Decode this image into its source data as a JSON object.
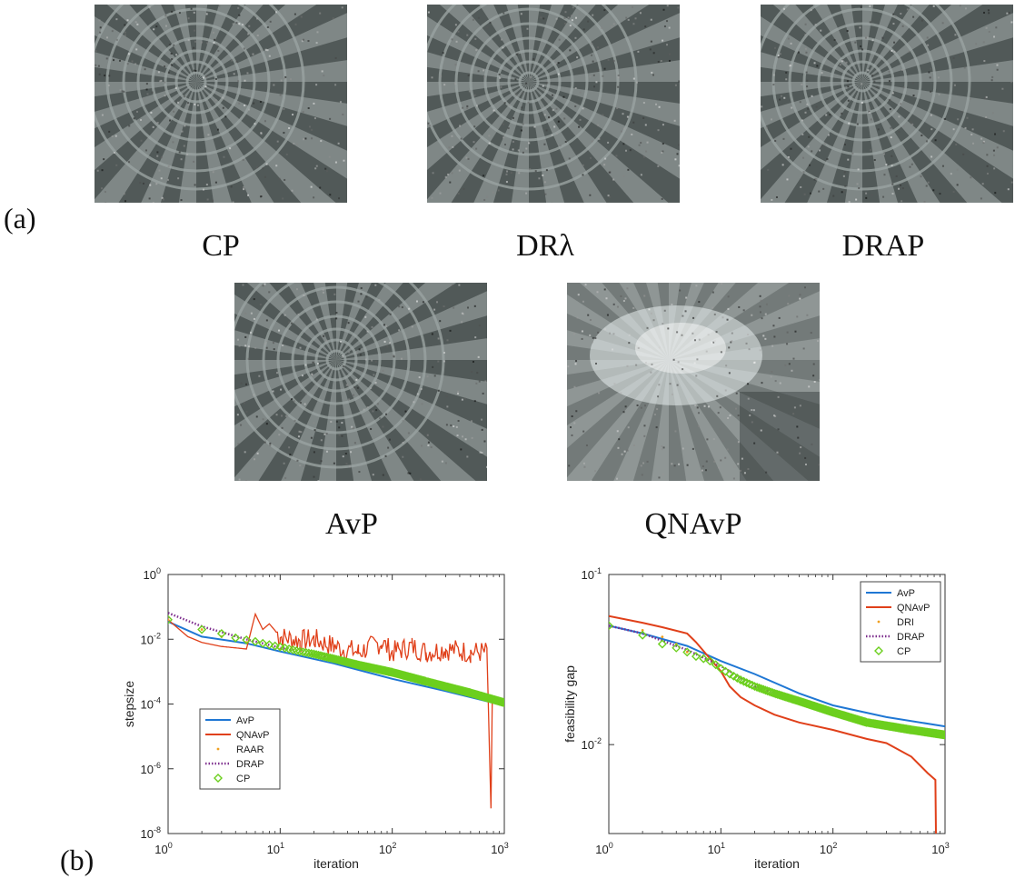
{
  "panel_labels": {
    "a": "(a)",
    "b": "(b)"
  },
  "images": [
    {
      "caption": "CP",
      "style": "grid"
    },
    {
      "caption": "DRλ",
      "style": "grid"
    },
    {
      "caption": "DRAP",
      "style": "grid"
    },
    {
      "caption": "AvP",
      "style": "grid"
    },
    {
      "caption": "QNAvP",
      "style": "blurred"
    }
  ],
  "colors": {
    "AvP": "#1f77d4",
    "QNAvP": "#e0401a",
    "RAAR": "#f0a020",
    "DRI": "#f0a020",
    "DRAP": "#7e2f8e",
    "CP": "#6ccf1e"
  },
  "chart_data": [
    {
      "type": "line",
      "xscale": "log",
      "yscale": "log",
      "xlim": [
        1,
        1000
      ],
      "ylim": [
        1e-08,
        1
      ],
      "xlabel": "iteration",
      "ylabel": "stepsize",
      "xticks": [
        1,
        10,
        100,
        1000
      ],
      "yticks": [
        1e-08,
        1e-06,
        0.0001,
        0.01,
        1
      ],
      "x_tick_labels": [
        {
          "base": "10",
          "exp": "0"
        },
        {
          "base": "10",
          "exp": "1"
        },
        {
          "base": "10",
          "exp": "2"
        },
        {
          "base": "10",
          "exp": "3"
        }
      ],
      "y_tick_labels": [
        {
          "base": "10",
          "exp": "-8"
        },
        {
          "base": "10",
          "exp": "-6"
        },
        {
          "base": "10",
          "exp": "-4"
        },
        {
          "base": "10",
          "exp": "-2"
        },
        {
          "base": "10",
          "exp": "0"
        }
      ],
      "legend_position": "bottom-left",
      "legend": [
        "AvP",
        "QNAvP",
        "RAAR",
        "DRAP",
        "CP"
      ],
      "series": [
        {
          "name": "AvP",
          "style": "line",
          "points": [
            [
              1,
              0.035
            ],
            [
              2,
              0.012
            ],
            [
              5,
              0.0075
            ],
            [
              10,
              0.0042
            ],
            [
              30,
              0.0018
            ],
            [
              100,
              0.0006
            ],
            [
              300,
              0.00025
            ],
            [
              1000,
              9e-05
            ]
          ]
        },
        {
          "name": "QNAvP",
          "style": "noisy",
          "points": [
            [
              1,
              0.04
            ],
            [
              1.5,
              0.012
            ],
            [
              2,
              0.008
            ],
            [
              3,
              0.006
            ],
            [
              5,
              0.005
            ],
            [
              6,
              0.06
            ],
            [
              7,
              0.02
            ],
            [
              8,
              0.03
            ],
            [
              10,
              0.012
            ],
            [
              15,
              0.009
            ],
            [
              20,
              0.01
            ],
            [
              30,
              0.006
            ],
            [
              50,
              0.004
            ],
            [
              80,
              0.008
            ],
            [
              100,
              0.004
            ],
            [
              150,
              0.006
            ],
            [
              200,
              0.004
            ],
            [
              300,
              0.005
            ],
            [
              500,
              0.004
            ],
            [
              700,
              0.004
            ],
            [
              760,
              6e-08
            ],
            [
              780,
              0.00012
            ]
          ]
        },
        {
          "name": "RAAR",
          "style": "dots",
          "points": [
            [
              1,
              0.04
            ],
            [
              2,
              0.02
            ],
            [
              3,
              0.012
            ],
            [
              5,
              0.008
            ],
            [
              10,
              0.005
            ],
            [
              30,
              0.0025
            ],
            [
              100,
              0.001
            ],
            [
              300,
              0.0004
            ],
            [
              1000,
              0.0001
            ]
          ]
        },
        {
          "name": "DRAP",
          "style": "dotted",
          "points": [
            [
              1,
              0.065
            ],
            [
              2,
              0.025
            ],
            [
              5,
              0.01
            ],
            [
              10,
              0.0055
            ],
            [
              30,
              0.0025
            ],
            [
              100,
              0.001
            ],
            [
              300,
              0.00035
            ],
            [
              1000,
              0.00011
            ]
          ]
        },
        {
          "name": "CP",
          "style": "markers",
          "points": [
            [
              1,
              0.04
            ],
            [
              2,
              0.02
            ],
            [
              3,
              0.015
            ],
            [
              4,
              0.011
            ],
            [
              5,
              0.0095
            ],
            [
              6,
              0.0085
            ],
            [
              7,
              0.0075
            ],
            [
              8,
              0.0068
            ],
            [
              9,
              0.0062
            ],
            [
              10,
              0.0058
            ],
            [
              12,
              0.005
            ],
            [
              15,
              0.0042
            ],
            [
              20,
              0.0035
            ],
            [
              30,
              0.0025
            ],
            [
              50,
              0.0016
            ],
            [
              100,
              0.00095
            ],
            [
              200,
              0.0005
            ],
            [
              500,
              0.00022
            ],
            [
              1000,
              0.00011
            ]
          ]
        }
      ]
    },
    {
      "type": "line",
      "xscale": "log",
      "yscale": "log",
      "xlim": [
        1,
        1000
      ],
      "ylim": [
        0.003,
        0.1
      ],
      "xlabel": "iteration",
      "ylabel": "feasibility gap",
      "xticks": [
        1,
        10,
        100,
        1000
      ],
      "yticks": [
        0.01,
        0.1
      ],
      "x_tick_labels": [
        {
          "base": "10",
          "exp": "0"
        },
        {
          "base": "10",
          "exp": "1"
        },
        {
          "base": "10",
          "exp": "2"
        },
        {
          "base": "10",
          "exp": "3"
        }
      ],
      "y_tick_labels": [
        {
          "base": "10",
          "exp": "-2"
        },
        {
          "base": "10",
          "exp": "-1"
        }
      ],
      "legend_position": "top-right",
      "legend": [
        "AvP",
        "QNAvP",
        "DRI",
        "DRAP",
        "CP"
      ],
      "series": [
        {
          "name": "AvP",
          "style": "line",
          "points": [
            [
              1,
              0.05
            ],
            [
              2,
              0.045
            ],
            [
              5,
              0.038
            ],
            [
              10,
              0.031
            ],
            [
              20,
              0.026
            ],
            [
              50,
              0.02
            ],
            [
              100,
              0.017
            ],
            [
              300,
              0.0145
            ],
            [
              1000,
              0.0128
            ]
          ]
        },
        {
          "name": "QNAvP",
          "style": "line",
          "points": [
            [
              1,
              0.057
            ],
            [
              2,
              0.052
            ],
            [
              3,
              0.049
            ],
            [
              5,
              0.045
            ],
            [
              6,
              0.04
            ],
            [
              8,
              0.032
            ],
            [
              10,
              0.027
            ],
            [
              12,
              0.022
            ],
            [
              15,
              0.019
            ],
            [
              20,
              0.017
            ],
            [
              30,
              0.015
            ],
            [
              50,
              0.0135
            ],
            [
              100,
              0.0122
            ],
            [
              200,
              0.0108
            ],
            [
              300,
              0.0102
            ],
            [
              500,
              0.0085
            ],
            [
              700,
              0.0068
            ],
            [
              820,
              0.0062
            ],
            [
              830,
              0.003
            ]
          ]
        },
        {
          "name": "DRI",
          "style": "dots",
          "points": [
            [
              2,
              0.047
            ],
            [
              3,
              0.043
            ],
            [
              4,
              0.039
            ],
            [
              5,
              0.035
            ]
          ]
        },
        {
          "name": "DRAP",
          "style": "dotted",
          "points": [
            [
              1,
              0.05
            ],
            [
              2,
              0.045
            ],
            [
              5,
              0.036
            ],
            [
              10,
              0.029
            ],
            [
              20,
              0.022
            ],
            [
              50,
              0.018
            ],
            [
              100,
              0.0155
            ],
            [
              300,
              0.013
            ],
            [
              1000,
              0.0115
            ]
          ]
        },
        {
          "name": "CP",
          "style": "markers",
          "points": [
            [
              1,
              0.05
            ],
            [
              2,
              0.044
            ],
            [
              3,
              0.039
            ],
            [
              4,
              0.037
            ],
            [
              5,
              0.035
            ],
            [
              6,
              0.033
            ],
            [
              7,
              0.032
            ],
            [
              8,
              0.031
            ],
            [
              9,
              0.0295
            ],
            [
              10,
              0.028
            ],
            [
              12,
              0.026
            ],
            [
              15,
              0.024
            ],
            [
              20,
              0.022
            ],
            [
              30,
              0.02
            ],
            [
              50,
              0.018
            ],
            [
              100,
              0.0155
            ],
            [
              200,
              0.0135
            ],
            [
              500,
              0.0122
            ],
            [
              1000,
              0.0114
            ]
          ]
        }
      ]
    }
  ]
}
